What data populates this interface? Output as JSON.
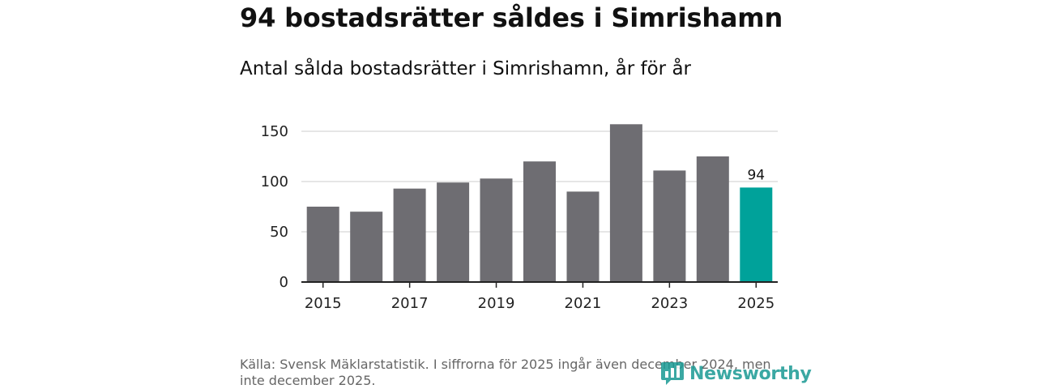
{
  "header": {
    "title": "94 bostadsrätter såldes i Simrishamn",
    "subtitle": "Antal sålda bostadsrätter i Simrishamn, år för år"
  },
  "chart_data": {
    "type": "bar",
    "title": "94 bostadsrätter såldes i Simrishamn",
    "subtitle": "Antal sålda bostadsrätter i Simrishamn, år för år",
    "xlabel": "",
    "ylabel": "",
    "categories": [
      "2015",
      "2016",
      "2017",
      "2018",
      "2019",
      "2020",
      "2021",
      "2022",
      "2023",
      "2024",
      "2025"
    ],
    "values": [
      75,
      70,
      93,
      99,
      103,
      120,
      90,
      157,
      111,
      125,
      94
    ],
    "x_tick_labels": [
      "2015",
      "2017",
      "2019",
      "2021",
      "2023",
      "2025"
    ],
    "y_ticks": [
      0,
      50,
      100,
      150
    ],
    "ylim": [
      0,
      160
    ],
    "grid": true,
    "highlight_index": 10,
    "data_labels": [
      {
        "index": 10,
        "text": "94"
      }
    ],
    "colors": {
      "bar": "#6e6d72",
      "highlight": "#00a29a",
      "grid": "#dddddd",
      "axis": "#222222"
    }
  },
  "footer": {
    "source": "Källa: Svensk Mäklarstatistik. I siffrorna för 2025 ingår även december 2024, men inte december 2025.",
    "brand_name": "Newsworthy",
    "brand_color": "#1a9a94",
    "brand_icon": "bar-chart-speech-bubble-icon"
  }
}
